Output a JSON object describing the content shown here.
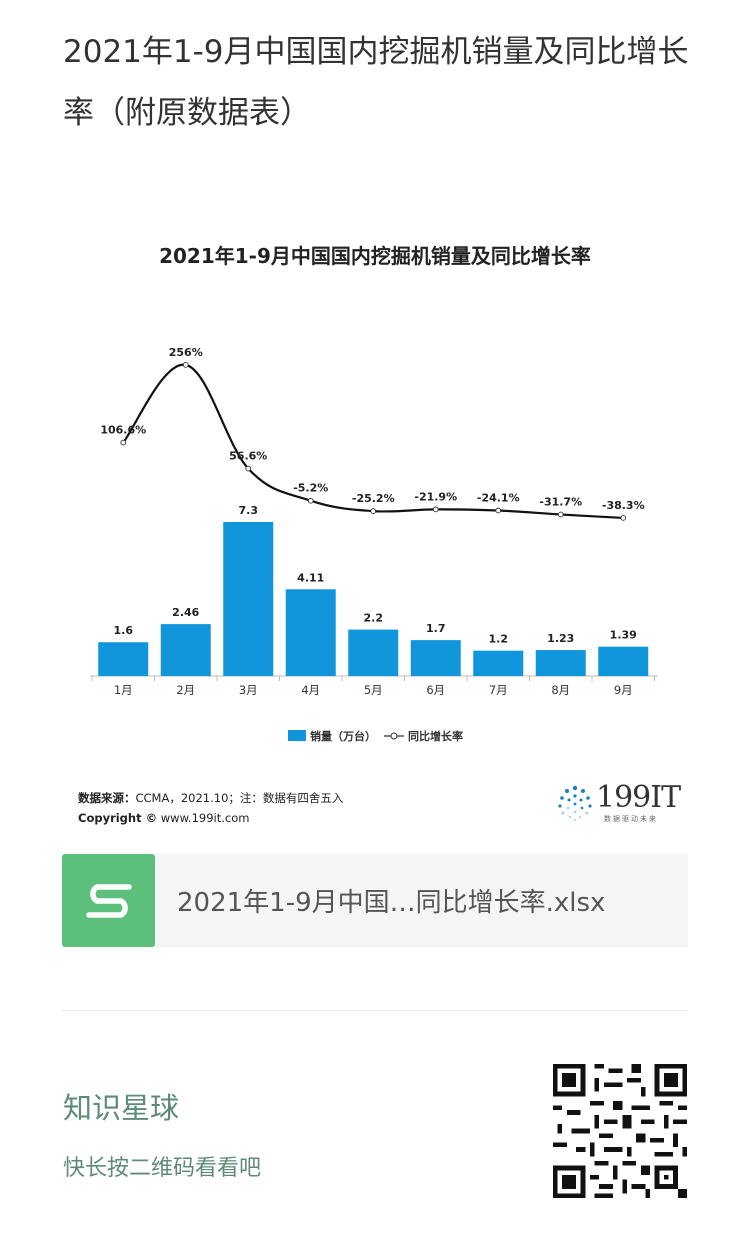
{
  "article": {
    "title": "2021年1-9月中国国内挖掘机销量及同比增长率（附原数据表）"
  },
  "chart_data": {
    "type": "bar+line",
    "title": "2021年1-9月中国国内挖掘机销量及同比增长率",
    "categories": [
      "1月",
      "2月",
      "3月",
      "4月",
      "5月",
      "6月",
      "7月",
      "8月",
      "9月"
    ],
    "series": [
      {
        "name": "销量（万台）",
        "type": "bar",
        "values": [
          1.6,
          2.46,
          7.3,
          4.11,
          2.2,
          1.7,
          1.2,
          1.23,
          1.39
        ],
        "labels": [
          "1.6",
          "2.46",
          "7.3",
          "4.11",
          "2.2",
          "1.7",
          "1.2",
          "1.23",
          "1.39"
        ],
        "color": "#1296db"
      },
      {
        "name": "同比增长率",
        "type": "line",
        "values": [
          106.6,
          256,
          56.6,
          -5.2,
          -25.2,
          -21.9,
          -24.1,
          -31.7,
          -38.3
        ],
        "labels": [
          "106.6%",
          "256%",
          "56.6%",
          "-5.2%",
          "-25.2%",
          "-21.9%",
          "-24.1%",
          "-31.7%",
          "-38.3%"
        ],
        "color": "#111111"
      }
    ],
    "legend_position": "bottom",
    "grid": false
  },
  "source": {
    "label": "数据来源：",
    "text": "CCMA，2021.10；注：数据有四舍五入",
    "copyright_label": "Copyright ©",
    "copyright_text": " www.199it.com"
  },
  "logo": {
    "name": "199IT",
    "tagline": "数据驱动未来"
  },
  "file": {
    "name": "2021年1-9月中国…同比增长率.xlsx",
    "icon": "spreadsheet-s-icon",
    "icon_color": "#5cbf7c"
  },
  "promo": {
    "title": "知识星球",
    "subtitle": "快长按二维码看看吧",
    "accent": "#5d8b76"
  }
}
